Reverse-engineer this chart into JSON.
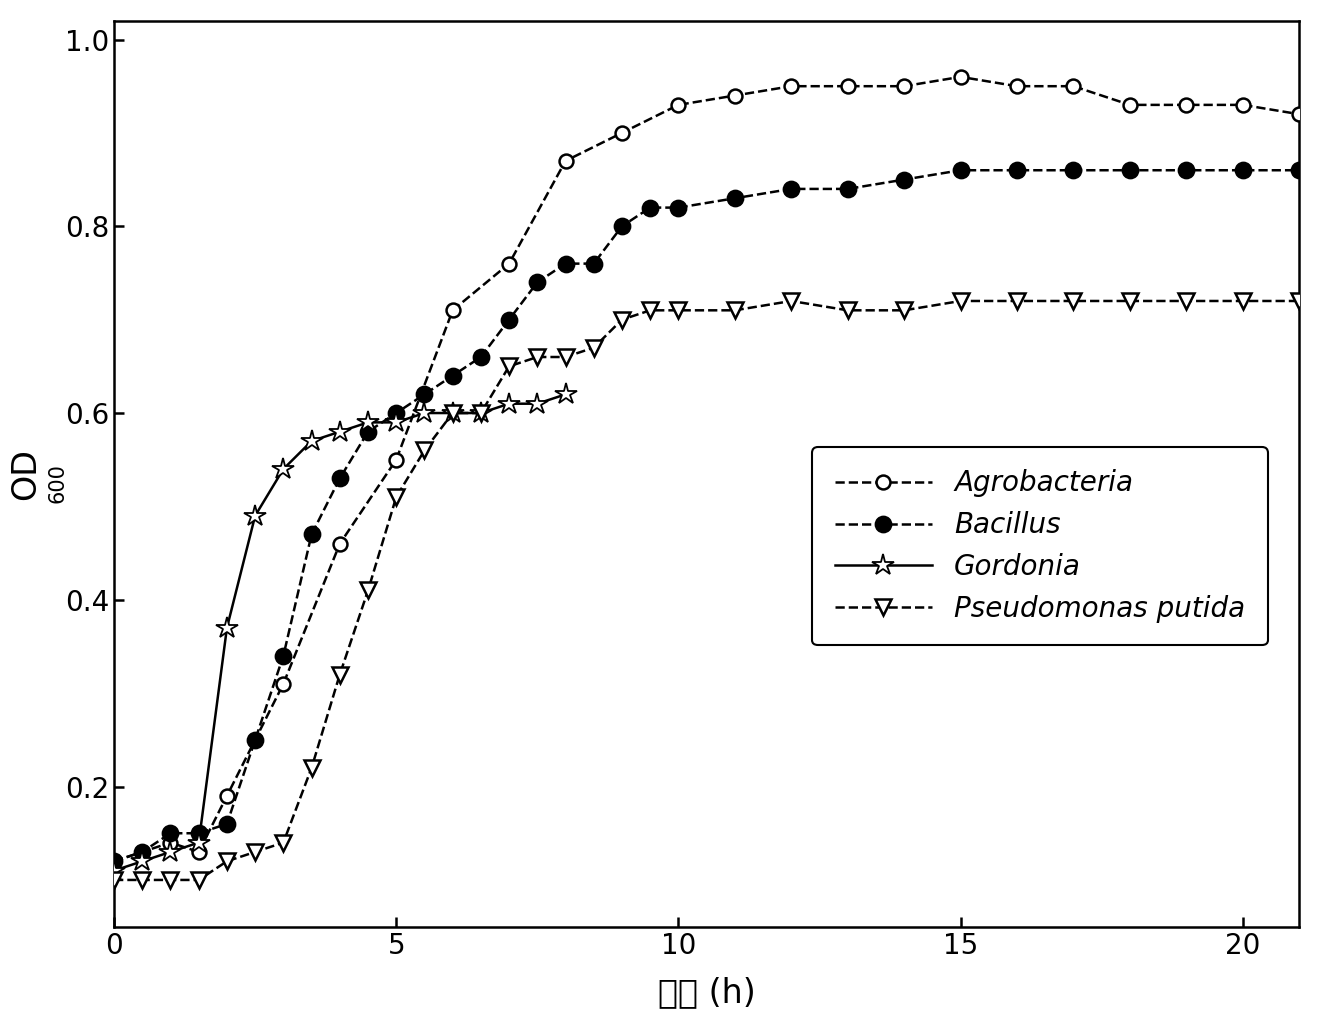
{
  "agrobacteria": {
    "x": [
      0,
      0.5,
      1,
      1.5,
      2,
      3,
      4,
      5,
      6,
      7,
      8,
      9,
      10,
      11,
      12,
      13,
      14,
      15,
      16,
      17,
      18,
      19,
      20,
      21
    ],
    "y": [
      0.12,
      0.13,
      0.14,
      0.13,
      0.19,
      0.31,
      0.46,
      0.55,
      0.71,
      0.76,
      0.87,
      0.9,
      0.93,
      0.94,
      0.95,
      0.95,
      0.95,
      0.96,
      0.95,
      0.95,
      0.93,
      0.93,
      0.93,
      0.92
    ]
  },
  "bacillus": {
    "x": [
      0,
      0.5,
      1,
      1.5,
      2,
      2.5,
      3,
      3.5,
      4,
      4.5,
      5,
      5.5,
      6,
      6.5,
      7,
      7.5,
      8,
      8.5,
      9,
      9.5,
      10,
      11,
      12,
      13,
      14,
      15,
      16,
      17,
      18,
      19,
      20,
      21
    ],
    "y": [
      0.12,
      0.13,
      0.15,
      0.15,
      0.16,
      0.25,
      0.34,
      0.47,
      0.53,
      0.58,
      0.6,
      0.62,
      0.64,
      0.66,
      0.7,
      0.74,
      0.76,
      0.76,
      0.8,
      0.82,
      0.82,
      0.83,
      0.84,
      0.84,
      0.85,
      0.86,
      0.86,
      0.86,
      0.86,
      0.86,
      0.86,
      0.86
    ]
  },
  "gordonia": {
    "x": [
      0,
      0.5,
      1,
      1.5,
      2,
      2.5,
      3,
      3.5,
      4,
      4.5,
      5,
      5.5,
      6,
      6.5,
      7,
      7.5,
      8
    ],
    "y": [
      0.11,
      0.12,
      0.13,
      0.14,
      0.37,
      0.49,
      0.54,
      0.57,
      0.58,
      0.59,
      0.59,
      0.6,
      0.6,
      0.6,
      0.61,
      0.61,
      0.62
    ]
  },
  "pseudomonas": {
    "x": [
      0,
      0.5,
      1,
      1.5,
      2,
      2.5,
      3,
      3.5,
      4,
      4.5,
      5,
      5.5,
      6,
      6.5,
      7,
      7.5,
      8,
      8.5,
      9,
      9.5,
      10,
      11,
      12,
      13,
      14,
      15,
      16,
      17,
      18,
      19,
      20,
      21
    ],
    "y": [
      0.1,
      0.1,
      0.1,
      0.1,
      0.12,
      0.13,
      0.14,
      0.22,
      0.32,
      0.41,
      0.51,
      0.56,
      0.6,
      0.6,
      0.65,
      0.66,
      0.66,
      0.67,
      0.7,
      0.71,
      0.71,
      0.71,
      0.72,
      0.71,
      0.71,
      0.72,
      0.72,
      0.72,
      0.72,
      0.72,
      0.72,
      0.72
    ]
  },
  "xlabel": "时间 (h)",
  "xlim": [
    0,
    21
  ],
  "ylim": [
    0.05,
    1.02
  ],
  "yticks": [
    0.2,
    0.4,
    0.6,
    0.8,
    1.0
  ],
  "xticks": [
    0,
    5,
    10,
    15,
    20
  ],
  "legend_labels": [
    "Agrobacteria",
    "Bacillus",
    "Gordonia",
    "Pseudomonas putida"
  ],
  "line_color": "#000000",
  "background_color": "#ffffff"
}
